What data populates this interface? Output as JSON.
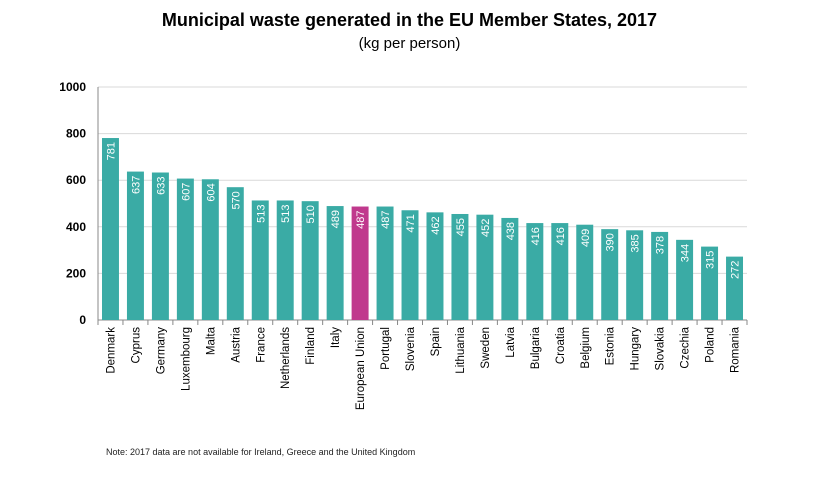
{
  "title": "Municipal waste generated in the EU Member States, 2017",
  "subtitle": "(kg per person)",
  "note": "Note: 2017 data are not available for Ireland, Greece and the United Kingdom",
  "colors": {
    "bar": "#3aaba5",
    "highlight": "#c0398d",
    "grid": "#d9d9d9",
    "axis": "#888888"
  },
  "chart_data": {
    "type": "bar",
    "orientation": "vertical",
    "title": "Municipal waste generated in the EU Member States, 2017",
    "subtitle": "(kg per person)",
    "xlabel": "",
    "ylabel": "",
    "ylim": [
      0,
      1000
    ],
    "yticks": [
      0,
      200,
      400,
      600,
      800,
      1000
    ],
    "grid": true,
    "highlight": "European Union",
    "categories": [
      "Denmark",
      "Cyprus",
      "Germany",
      "Luxembourg",
      "Malta",
      "Austria",
      "France",
      "Netherlands",
      "Finland",
      "Italy",
      "European Union",
      "Portugal",
      "Slovenia",
      "Spain",
      "Lithuania",
      "Sweden",
      "Latvia",
      "Bulgaria",
      "Croatia",
      "Belgium",
      "Estonia",
      "Hungary",
      "Slovakia",
      "Czechia",
      "Poland",
      "Romania"
    ],
    "values": [
      781,
      637,
      633,
      607,
      604,
      570,
      513,
      513,
      510,
      489,
      487,
      487,
      471,
      462,
      455,
      452,
      438,
      416,
      416,
      409,
      390,
      385,
      378,
      344,
      315,
      272
    ]
  }
}
